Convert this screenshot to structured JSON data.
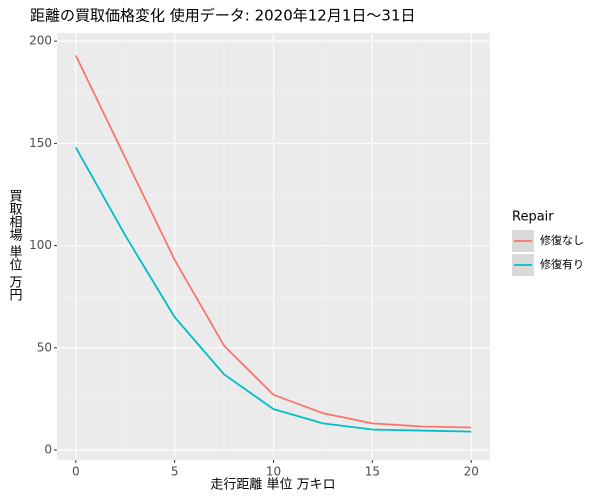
{
  "chart_data": {
    "type": "line",
    "title": "距離の買取価格変化 使用データ: 2020年12月1日～31日",
    "x_label": "走行距離 単位 万キロ",
    "y_label": "買取相場 単位 万円",
    "legend_title": "Repair",
    "x": [
      0,
      2.5,
      5,
      7.5,
      10,
      12.5,
      15,
      17.5,
      20
    ],
    "series": [
      {
        "name": "修復なし",
        "color": "#F8766D",
        "values": [
          193,
          143,
          93,
          51,
          27,
          18,
          13,
          11.5,
          11
        ]
      },
      {
        "name": "修復有り",
        "color": "#00BFC4",
        "values": [
          148,
          105,
          65,
          37,
          20,
          13,
          10,
          9.5,
          9
        ]
      }
    ],
    "xlim": [
      -0.95,
      20.95
    ],
    "xticks": [
      0,
      5,
      10,
      15,
      20
    ],
    "ylim": [
      -4.9,
      204
    ],
    "yticks": [
      0,
      50,
      100,
      150,
      200
    ],
    "grid": true,
    "legend_position": "right"
  }
}
